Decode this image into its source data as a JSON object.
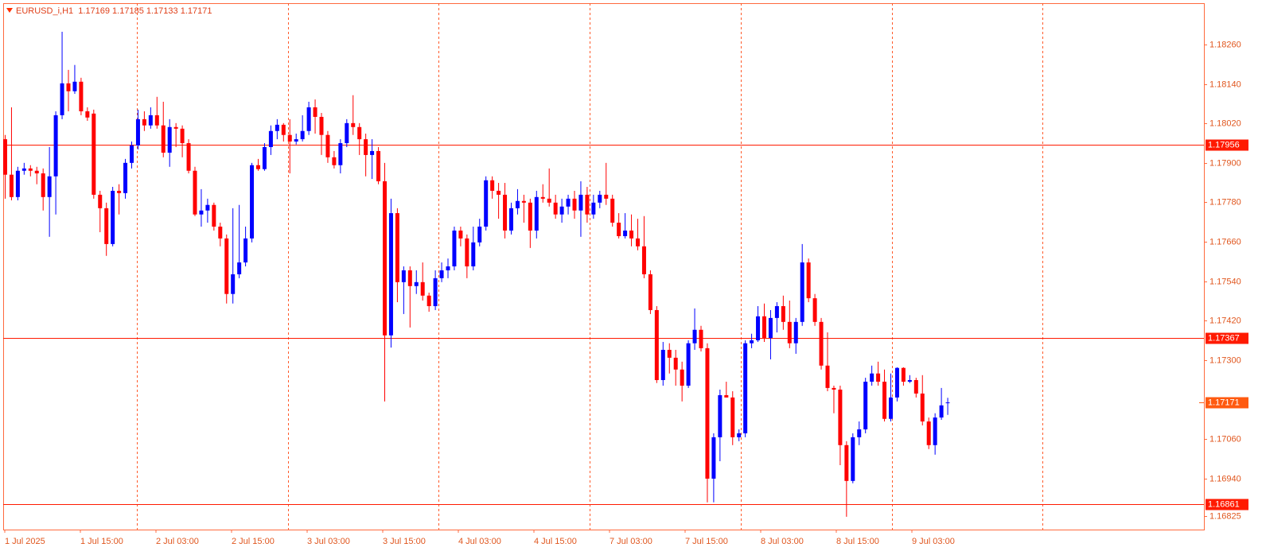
{
  "chart_data": {
    "type": "candlestick",
    "title": "EURUSD_i,H1  1.17169 1.17185 1.17133 1.17171",
    "x_labels": [
      "1 Jul 2025",
      "1 Jul 15:00",
      "2 Jul 03:00",
      "2 Jul 15:00",
      "3 Jul 03:00",
      "3 Jul 15:00",
      "4 Jul 03:00",
      "4 Jul 15:00",
      "7 Jul 03:00",
      "7 Jul 15:00",
      "8 Jul 03:00",
      "8 Jul 15:00",
      "9 Jul 03:00"
    ],
    "up_color": "#0000ff",
    "down_color": "#ff0000",
    "ylim": [
      1.16784,
      1.18386
    ],
    "yticks": [
      {
        "value": 1.1826,
        "label": "1.18260"
      },
      {
        "value": 1.1814,
        "label": "1.18140"
      },
      {
        "value": 1.1802,
        "label": "1.18020"
      },
      {
        "value": 1.179,
        "label": "1.17900"
      },
      {
        "value": 1.1778,
        "label": "1.17780"
      },
      {
        "value": 1.1766,
        "label": "1.17660"
      },
      {
        "value": 1.1754,
        "label": "1.17540"
      },
      {
        "value": 1.1742,
        "label": "1.17420"
      },
      {
        "value": 1.173,
        "label": "1.17300"
      },
      {
        "value": 1.1706,
        "label": "1.17060"
      },
      {
        "value": 1.1694,
        "label": "1.16940"
      },
      {
        "value": 1.16825,
        "label": "1.16825"
      }
    ],
    "levels": [
      {
        "value": 1.17956,
        "label": "1.17956"
      },
      {
        "value": 1.17367,
        "label": "1.17367"
      },
      {
        "value": 1.16861,
        "label": "1.16861"
      }
    ],
    "current_price": {
      "value": 1.17171,
      "label": "1.17171"
    },
    "open": [
      1.17972,
      1.17864,
      1.17796,
      1.17876,
      1.17883,
      1.17876,
      1.17868,
      1.17796,
      1.17859,
      1.18045,
      1.18142,
      1.18118,
      1.18147,
      1.18057,
      1.1805,
      1.17803,
      1.17762,
      1.17653,
      1.17815,
      1.17808,
      1.179,
      1.17953,
      1.18033,
      1.18014,
      1.18045,
      1.18014,
      1.17931,
      1.18009,
      1.18004,
      1.1796,
      1.17876,
      1.17743,
      1.17755,
      1.17772,
      1.17706,
      1.1767,
      1.17501,
      1.17561,
      1.17597,
      1.1767,
      1.17893,
      1.17881,
      1.17948,
      1.17997,
      1.18016,
      1.17985,
      1.17965,
      1.17972,
      1.17997,
      1.18069,
      1.1804,
      1.17985,
      1.17917,
      1.17893,
      1.1796,
      1.18021,
      1.18009,
      1.17972,
      1.17924,
      1.17936,
      1.17844,
      1.17375,
      1.17747,
      1.17537,
      1.17573,
      1.17525,
      1.17537,
      1.17496,
      1.17464,
      1.17549,
      1.17573,
      1.17585,
      1.17694,
      1.1767,
      1.17585,
      1.17658,
      1.17706,
      1.17847,
      1.17815,
      1.17803,
      1.17694,
      1.17762,
      1.17784,
      1.17779,
      1.17694,
      1.17796,
      1.17791,
      1.17779,
      1.17743,
      1.17767,
      1.17791,
      1.17755,
      1.17803,
      1.17743,
      1.17779,
      1.17803,
      1.17791,
      1.17718,
      1.17677,
      1.17694,
      1.1767,
      1.17646,
      1.17561,
      1.17452,
      1.17239,
      1.17331,
      1.17307,
      1.17271,
      1.17222,
      1.17351,
      1.17392,
      1.17336,
      1.16939,
      1.17065,
      1.17193,
      1.17186,
      1.17065,
      1.17077,
      1.17351,
      1.1736,
      1.17433,
      1.17367,
      1.17428,
      1.17464,
      1.17416,
      1.17351,
      1.17416,
      1.17597,
      1.17488,
      1.17416,
      1.17283,
      1.17215,
      1.1721,
      1.17041,
      1.16932,
      1.17065,
      1.17089,
      1.17234,
      1.17259,
      1.17234,
      1.17121,
      1.17186,
      1.17276,
      1.17234,
      1.17239,
      1.17198,
      1.17113,
      1.17041,
      1.17125,
      1.17169
    ],
    "high": [
      1.17985,
      1.18069,
      1.17888,
      1.179,
      1.17893,
      1.17888,
      1.17883,
      1.17948,
      1.18057,
      1.18299,
      1.18183,
      1.18198,
      1.18159,
      1.18069,
      1.18062,
      1.17815,
      1.17779,
      1.17827,
      1.17835,
      1.17912,
      1.17965,
      1.18062,
      1.18057,
      1.18069,
      1.18101,
      1.18086,
      1.18033,
      1.18021,
      1.18014,
      1.17972,
      1.17888,
      1.1782,
      1.17791,
      1.17779,
      1.17718,
      1.17682,
      1.17762,
      1.17772,
      1.17706,
      1.179,
      1.17912,
      1.1796,
      1.18014,
      1.18033,
      1.18021,
      1.18033,
      1.17989,
      1.18045,
      1.18086,
      1.18093,
      1.18052,
      1.17997,
      1.17936,
      1.17972,
      1.18033,
      1.18106,
      1.18021,
      1.17989,
      1.17972,
      1.17948,
      1.179,
      1.17791,
      1.17762,
      1.17585,
      1.17585,
      1.17573,
      1.17597,
      1.17505,
      1.17573,
      1.17597,
      1.17609,
      1.17706,
      1.17706,
      1.17682,
      1.17706,
      1.1773,
      1.17859,
      1.17859,
      1.17839,
      1.17839,
      1.17779,
      1.1782,
      1.17803,
      1.17791,
      1.17815,
      1.17835,
      1.17883,
      1.17803,
      1.17791,
      1.17803,
      1.17815,
      1.17844,
      1.17827,
      1.17803,
      1.17815,
      1.179,
      1.17803,
      1.17747,
      1.17747,
      1.17743,
      1.1773,
      1.17738,
      1.17573,
      1.17464,
      1.17355,
      1.17351,
      1.17331,
      1.17295,
      1.1736,
      1.17457,
      1.17404,
      1.17351,
      1.17077,
      1.1721,
      1.17234,
      1.17205,
      1.17089,
      1.1736,
      1.1738,
      1.17464,
      1.17472,
      1.17452,
      1.17476,
      1.17496,
      1.17481,
      1.17428,
      1.17653,
      1.17609,
      1.17501,
      1.17428,
      1.17384,
      1.17222,
      1.17222,
      1.17053,
      1.17077,
      1.17113,
      1.17246,
      1.17283,
      1.17295,
      1.17271,
      1.17259,
      1.17278,
      1.17278,
      1.17254,
      1.17246,
      1.17254,
      1.17125,
      1.17138,
      1.17215,
      1.17185
    ],
    "low": [
      1.17791,
      1.17786,
      1.17786,
      1.17864,
      1.17859,
      1.17835,
      1.17755,
      1.17675,
      1.17743,
      1.18033,
      1.18057,
      1.1811,
      1.18045,
      1.18028,
      1.17791,
      1.17689,
      1.17617,
      1.17646,
      1.17743,
      1.17791,
      1.17883,
      1.17941,
      1.17997,
      1.18004,
      1.18004,
      1.17917,
      1.17888,
      1.17948,
      1.17917,
      1.17868,
      1.17738,
      1.17706,
      1.17718,
      1.17694,
      1.17646,
      1.17472,
      1.17472,
      1.17549,
      1.17585,
      1.17658,
      1.17876,
      1.17876,
      1.17924,
      1.17972,
      1.17965,
      1.17868,
      1.17956,
      1.17965,
      1.17985,
      1.17989,
      1.17924,
      1.179,
      1.17883,
      1.17868,
      1.17948,
      1.17985,
      1.17924,
      1.17859,
      1.17851,
      1.17835,
      1.17174,
      1.17338,
      1.17476,
      1.1744,
      1.17399,
      1.17501,
      1.17481,
      1.17447,
      1.17452,
      1.17537,
      1.17549,
      1.17573,
      1.17646,
      1.17549,
      1.17573,
      1.17646,
      1.17694,
      1.17791,
      1.1773,
      1.1767,
      1.17682,
      1.17743,
      1.17718,
      1.17641,
      1.1767,
      1.17779,
      1.17767,
      1.1773,
      1.17718,
      1.17743,
      1.1773,
      1.17675,
      1.17718,
      1.1773,
      1.17762,
      1.17772,
      1.17706,
      1.1767,
      1.1767,
      1.17646,
      1.17634,
      1.17549,
      1.1744,
      1.1723,
      1.17222,
      1.17259,
      1.17222,
      1.17174,
      1.17215,
      1.17331,
      1.17326,
      1.16867,
      1.16867,
      1.16992,
      1.17186,
      1.17041,
      1.17053,
      1.17065,
      1.17336,
      1.17355,
      1.17355,
      1.17302,
      1.17384,
      1.17392,
      1.17336,
      1.17319,
      1.17404,
      1.17476,
      1.17404,
      1.17271,
      1.17205,
      1.17138,
      1.1698,
      1.16823,
      1.16925,
      1.17041,
      1.17077,
      1.17222,
      1.17222,
      1.17113,
      1.17113,
      1.17174,
      1.17222,
      1.1723,
      1.17186,
      1.17101,
      1.17029,
      1.17012,
      1.17118,
      1.17133
    ],
    "close": [
      1.17864,
      1.17796,
      1.17876,
      1.17883,
      1.17876,
      1.17868,
      1.17796,
      1.17859,
      1.18045,
      1.18142,
      1.18118,
      1.18147,
      1.18057,
      1.18038,
      1.17803,
      1.17762,
      1.17653,
      1.17815,
      1.17808,
      1.179,
      1.17953,
      1.18033,
      1.18014,
      1.18045,
      1.18014,
      1.17931,
      1.18009,
      1.18004,
      1.1796,
      1.17876,
      1.17743,
      1.17755,
      1.17772,
      1.17706,
      1.1767,
      1.17501,
      1.17561,
      1.17597,
      1.1767,
      1.17893,
      1.17881,
      1.17948,
      1.17997,
      1.18016,
      1.17985,
      1.17965,
      1.17972,
      1.17997,
      1.18069,
      1.1804,
      1.17985,
      1.17917,
      1.17893,
      1.1796,
      1.18021,
      1.18009,
      1.17972,
      1.17924,
      1.17936,
      1.17844,
      1.17375,
      1.17747,
      1.17537,
      1.17573,
      1.17525,
      1.17537,
      1.17496,
      1.17464,
      1.17549,
      1.17573,
      1.17585,
      1.17694,
      1.1767,
      1.17585,
      1.17658,
      1.17706,
      1.17847,
      1.17815,
      1.17803,
      1.17694,
      1.17762,
      1.17784,
      1.17779,
      1.17694,
      1.17796,
      1.17791,
      1.17779,
      1.17743,
      1.17767,
      1.17791,
      1.17755,
      1.17803,
      1.17743,
      1.17779,
      1.17803,
      1.17791,
      1.17718,
      1.17677,
      1.17694,
      1.1767,
      1.17646,
      1.17561,
      1.17452,
      1.17239,
      1.17331,
      1.17307,
      1.17271,
      1.17222,
      1.17351,
      1.17392,
      1.17336,
      1.16939,
      1.17065,
      1.17193,
      1.17186,
      1.17065,
      1.17077,
      1.17351,
      1.1736,
      1.17433,
      1.17367,
      1.17428,
      1.17464,
      1.17416,
      1.17351,
      1.17416,
      1.17597,
      1.17488,
      1.17416,
      1.17283,
      1.17215,
      1.1721,
      1.17041,
      1.16932,
      1.17065,
      1.17089,
      1.17234,
      1.17259,
      1.17234,
      1.17121,
      1.17186,
      1.17276,
      1.17234,
      1.17239,
      1.17198,
      1.17113,
      1.17041,
      1.17125,
      1.17162,
      1.17171
    ]
  }
}
